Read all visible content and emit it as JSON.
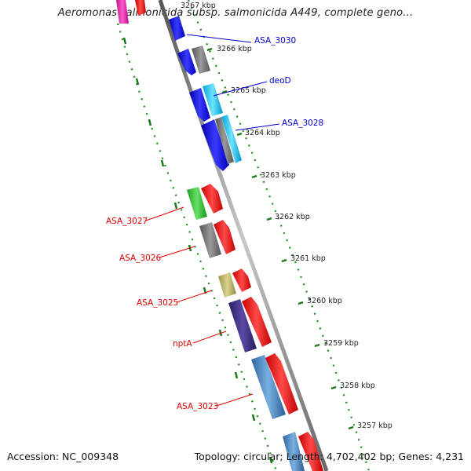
{
  "title": "Aeromonas salmonicida subsp. salmonicida A449, complete geno...",
  "footer": {
    "accession": "Accession: NC_009348",
    "topology": "Topology: circular; Length: 4,702,402 bp; Genes: 4,231"
  },
  "ticks": [
    "3267 kbp",
    "3266 kbp",
    "3265 kbp",
    "3264 kbp",
    "3263 kbp",
    "3262 kbp",
    "3261 kbp",
    "3260 kbp",
    "3259 kbp",
    "3258 kbp",
    "3257 kbp"
  ],
  "labels_plus": [
    "ASA_3030",
    "deoD",
    "ASA_3028"
  ],
  "labels_minus": [
    "ASA_3027",
    "ASA_3026",
    "ASA_3025",
    "nptA",
    "ASA_3023"
  ],
  "colors": {
    "plus_label": "#0000cc",
    "minus_label": "#dd0000",
    "backbone": "#888888",
    "tick_green": "#1a8a1a"
  }
}
